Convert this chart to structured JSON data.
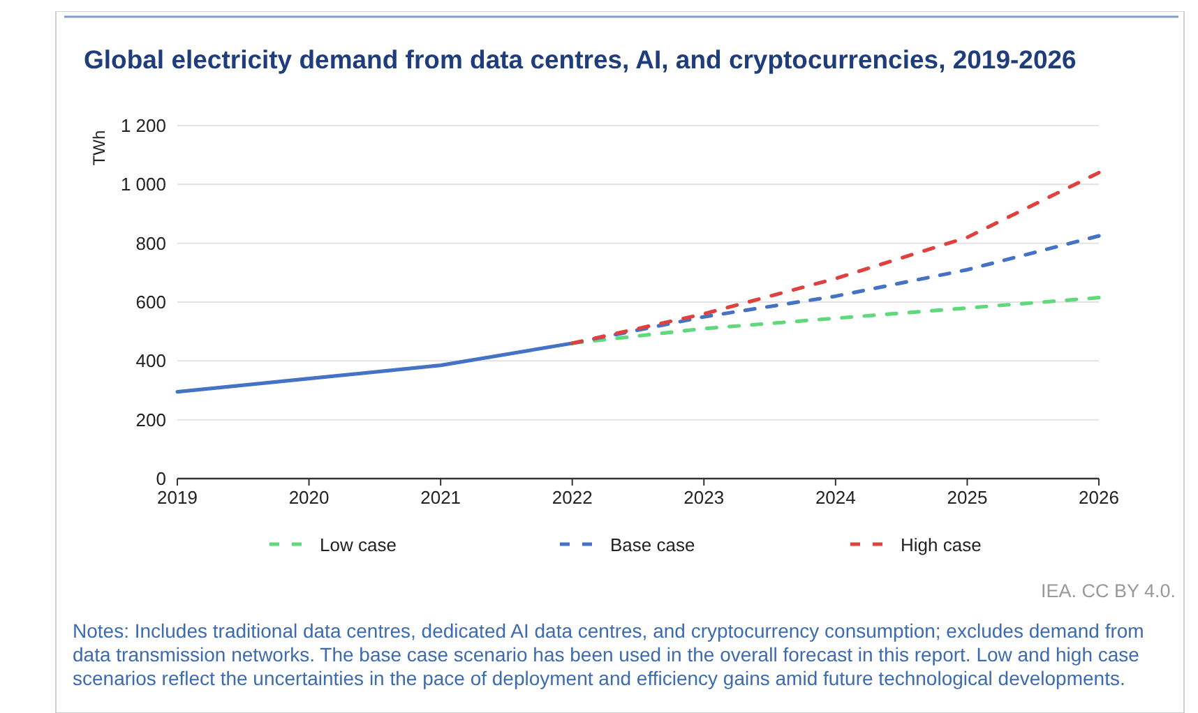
{
  "chart_data": {
    "type": "line",
    "title": "Global electricity demand from data centres, AI, and cryptocurrencies, 2019-2026",
    "ylabel": "TWh",
    "xlim": [
      2019,
      2026
    ],
    "xticks": [
      2019,
      2020,
      2021,
      2022,
      2023,
      2024,
      2025,
      2026
    ],
    "ylim": [
      0,
      1200
    ],
    "yticks": [
      0,
      200,
      400,
      600,
      800,
      {
        "value": 1000,
        "label": "1 000"
      },
      {
        "value": 1200,
        "label": "1 200"
      }
    ],
    "grid": "y",
    "legend": "bottom",
    "marker": "none",
    "series": [
      {
        "color": "#4472c4",
        "line_style": "solid",
        "x": [
          2019,
          2020,
          2021,
          2022
        ],
        "values": [
          295,
          340,
          385,
          460
        ]
      },
      {
        "name": "Low case",
        "color": "#5fd97c",
        "line_style": "dashed",
        "x": [
          2022,
          2023,
          2024,
          2025,
          2026
        ],
        "values": [
          460,
          510,
          545,
          580,
          615
        ]
      },
      {
        "name": "Base case",
        "color": "#4472c4",
        "line_style": "dashed",
        "x": [
          2022,
          2023,
          2024,
          2025,
          2026
        ],
        "values": [
          460,
          550,
          620,
          710,
          825
        ]
      },
      {
        "name": "High case",
        "color": "#e0403e",
        "line_style": "dashed",
        "x": [
          2022,
          2023,
          2024,
          2025,
          2026
        ],
        "values": [
          460,
          560,
          680,
          820,
          1040
        ]
      }
    ],
    "annotations": [
      "IEA. CC BY 4.0.",
      "Notes: Includes traditional data centres, dedicated AI data centres, and cryptocurrency consumption; excludes demand from data transmission networks. The base case scenario has been used in the overall forecast in this report. Low and high case scenarios reflect the uncertainties in the pace of deployment and efficiency gains amid future technological developments."
    ]
  }
}
